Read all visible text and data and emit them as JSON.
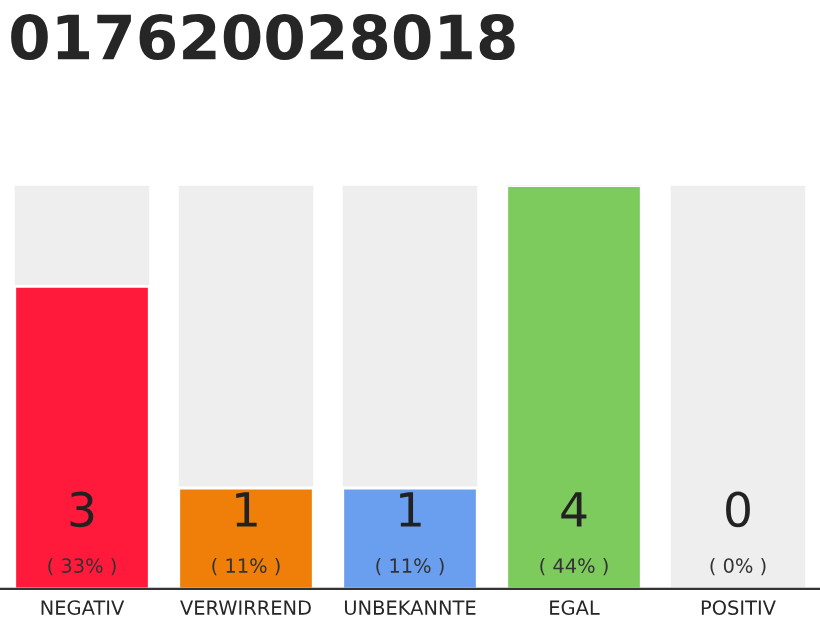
{
  "chart_data": {
    "type": "bar",
    "title": "017620028018",
    "categories": [
      "NEGATIV",
      "VERWIRREND",
      "UNBEKANNTE",
      "EGAL",
      "POSITIV"
    ],
    "values": [
      3,
      1,
      1,
      4,
      0
    ],
    "colors": [
      "#ff1a3c",
      "#f07f09",
      "#6a9ff0",
      "#7dcb5d",
      null
    ],
    "value_labels": [
      "3\n( 33% )",
      "1\n( 11% )",
      "1\n( 11% )",
      "4\n( 44% )",
      "0\n( 0% )"
    ],
    "ylim": [
      0,
      4
    ],
    "tick_labels": "x",
    "grid": false,
    "legend": false
  }
}
